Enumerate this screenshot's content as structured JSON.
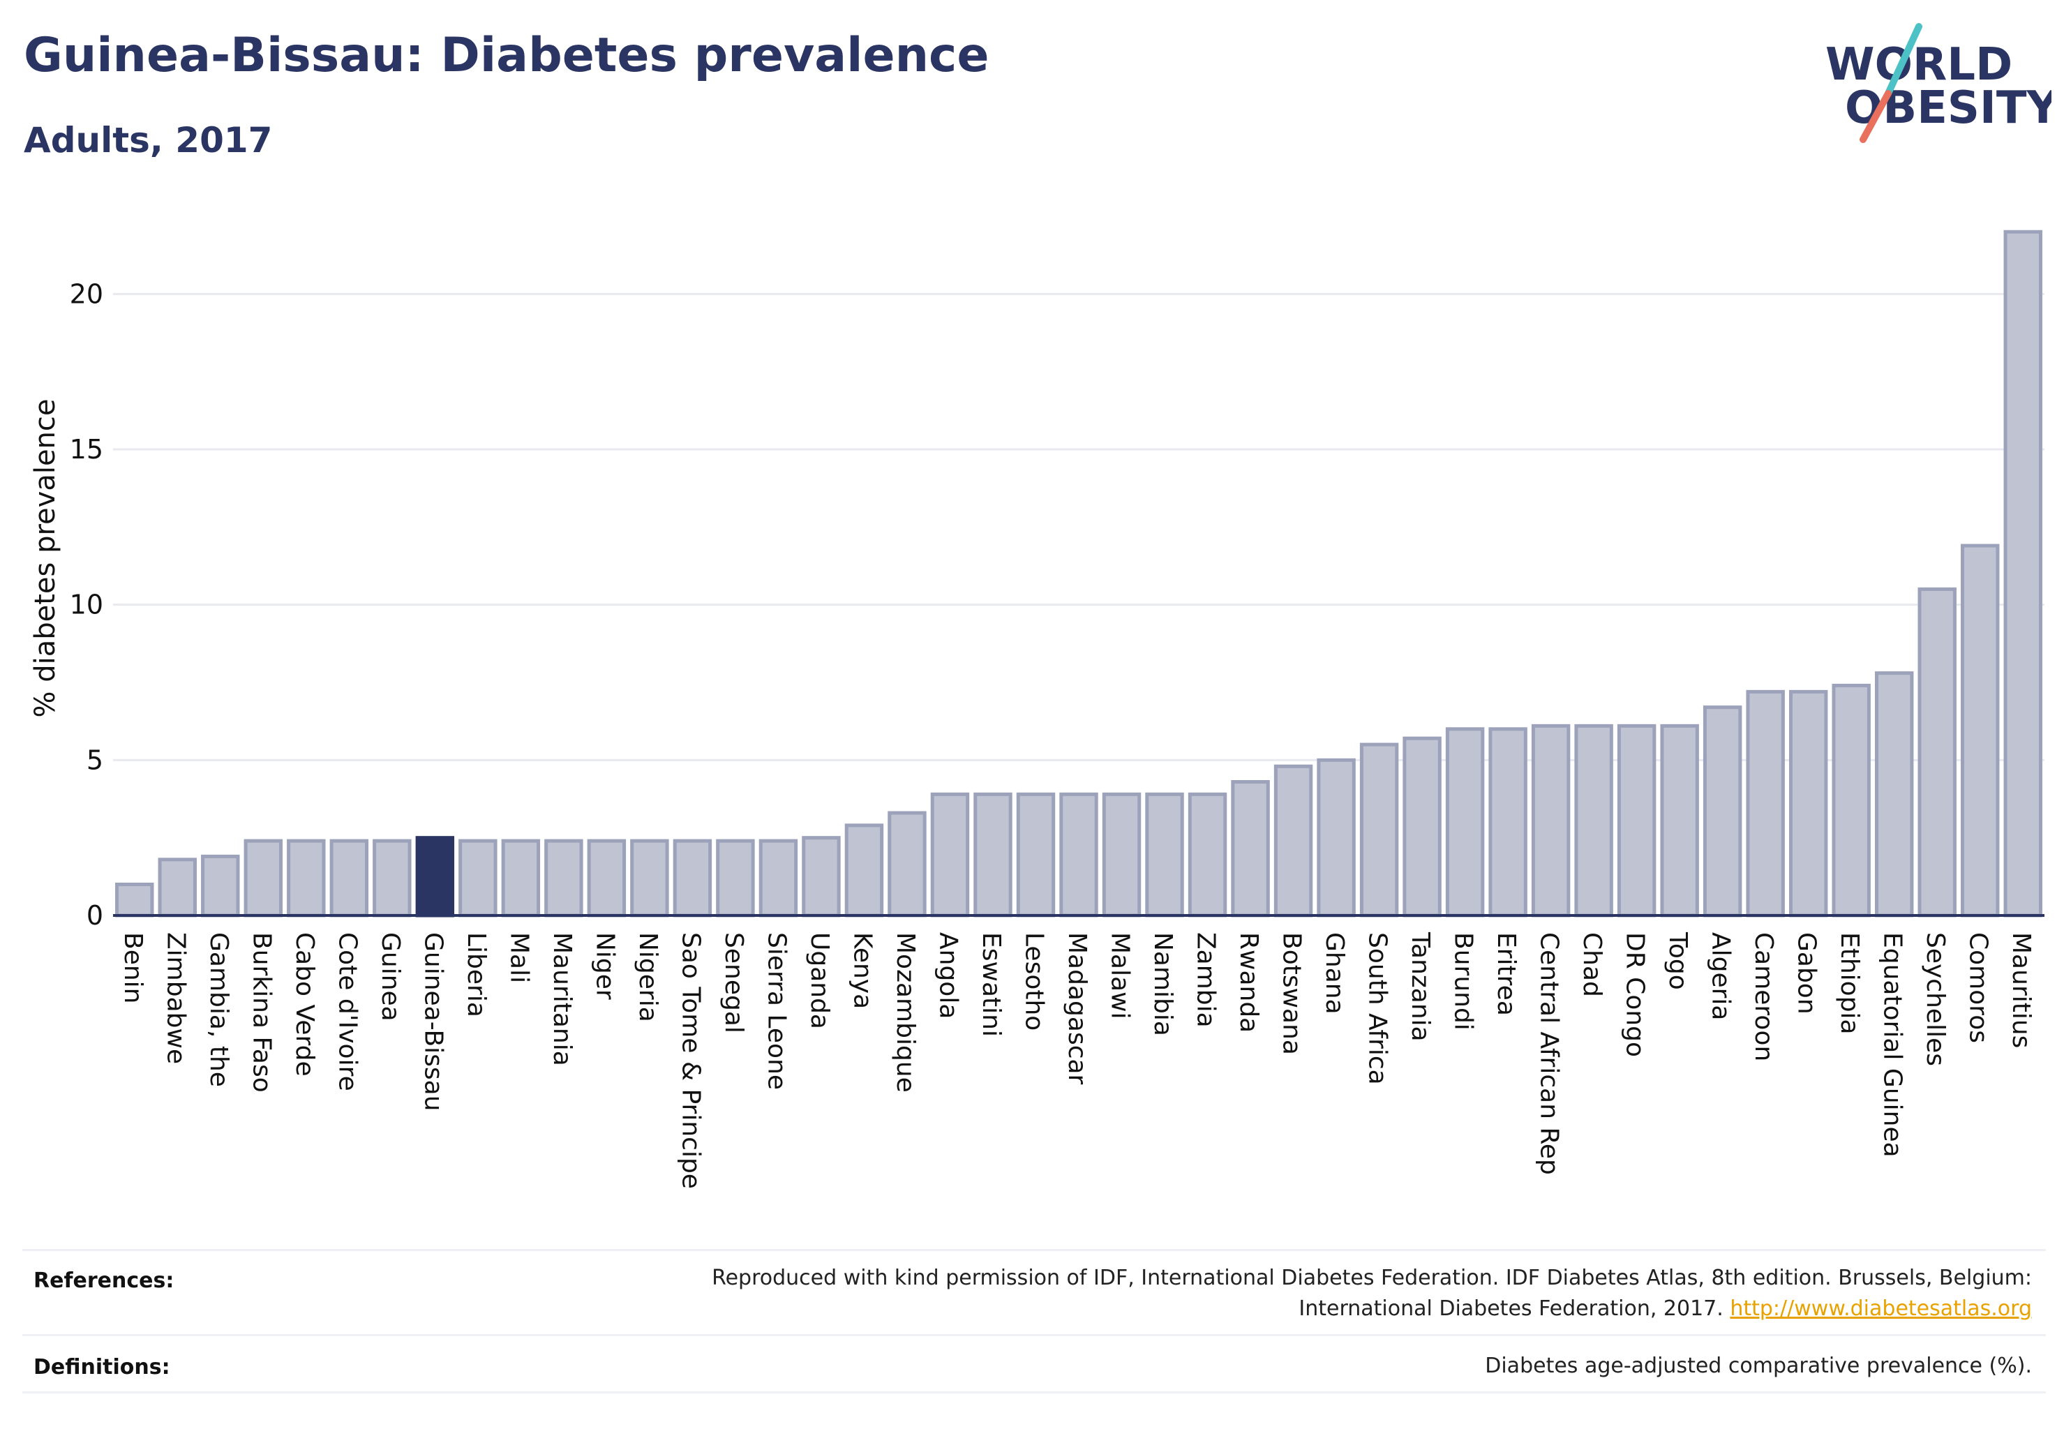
{
  "header": {
    "title": "Guinea-Bissau: Diabetes prevalence",
    "subtitle": "Adults, 2017"
  },
  "logo": {
    "line1": "WORLD",
    "line2": "OBESITY",
    "slash_colors": [
      "#4cc2c6",
      "#e8705c"
    ]
  },
  "colors": {
    "highlight": "#2a3563",
    "bar": "#bfc3d2",
    "bar_border": "#9ca2ba",
    "grid": "#e8eaf0",
    "axis": "#2a3563"
  },
  "chart_data": {
    "type": "bar",
    "ylabel": "% diabetes prevalence",
    "ylim": [
      0,
      22.5
    ],
    "yticks": [
      0,
      5,
      10,
      15,
      20
    ],
    "grid": true,
    "highlight": "Guinea-Bissau",
    "categories": [
      "Benin",
      "Zimbabwe",
      "Gambia, the",
      "Burkina Faso",
      "Cabo Verde",
      "Cote d'Ivoire",
      "Guinea",
      "Guinea-Bissau",
      "Liberia",
      "Mali",
      "Mauritania",
      "Niger",
      "Nigeria",
      "Sao Tome & Principe",
      "Senegal",
      "Sierra Leone",
      "Uganda",
      "Kenya",
      "Mozambique",
      "Angola",
      "Eswatini",
      "Lesotho",
      "Madagascar",
      "Malawi",
      "Namibia",
      "Zambia",
      "Rwanda",
      "Botswana",
      "Ghana",
      "South Africa",
      "Tanzania",
      "Burundi",
      "Eritrea",
      "Central African Rep",
      "Chad",
      "DR Congo",
      "Togo",
      "Algeria",
      "Cameroon",
      "Gabon",
      "Ethiopia",
      "Equatorial Guinea",
      "Seychelles",
      "Comoros",
      "Mauritius"
    ],
    "values": [
      1.0,
      1.8,
      1.9,
      2.4,
      2.4,
      2.4,
      2.4,
      2.5,
      2.4,
      2.4,
      2.4,
      2.4,
      2.4,
      2.4,
      2.4,
      2.4,
      2.5,
      2.9,
      3.3,
      3.9,
      3.9,
      3.9,
      3.9,
      3.9,
      3.9,
      3.9,
      4.3,
      4.8,
      5.0,
      5.5,
      5.7,
      6.0,
      6.0,
      6.1,
      6.1,
      6.1,
      6.1,
      6.7,
      7.2,
      7.2,
      7.4,
      7.8,
      10.5,
      11.9,
      22.0
    ]
  },
  "footer": {
    "references_label": "References:",
    "references_line1": "Reproduced with kind permission of IDF, International Diabetes Federation. IDF Diabetes Atlas, 8th edition. Brussels, Belgium:",
    "references_line2": "International Diabetes Federation, 2017.",
    "references_link": "http://www.diabetesatlas.org",
    "definitions_label": "Definitions:",
    "definitions_text": "Diabetes age-adjusted comparative prevalence (%)."
  }
}
